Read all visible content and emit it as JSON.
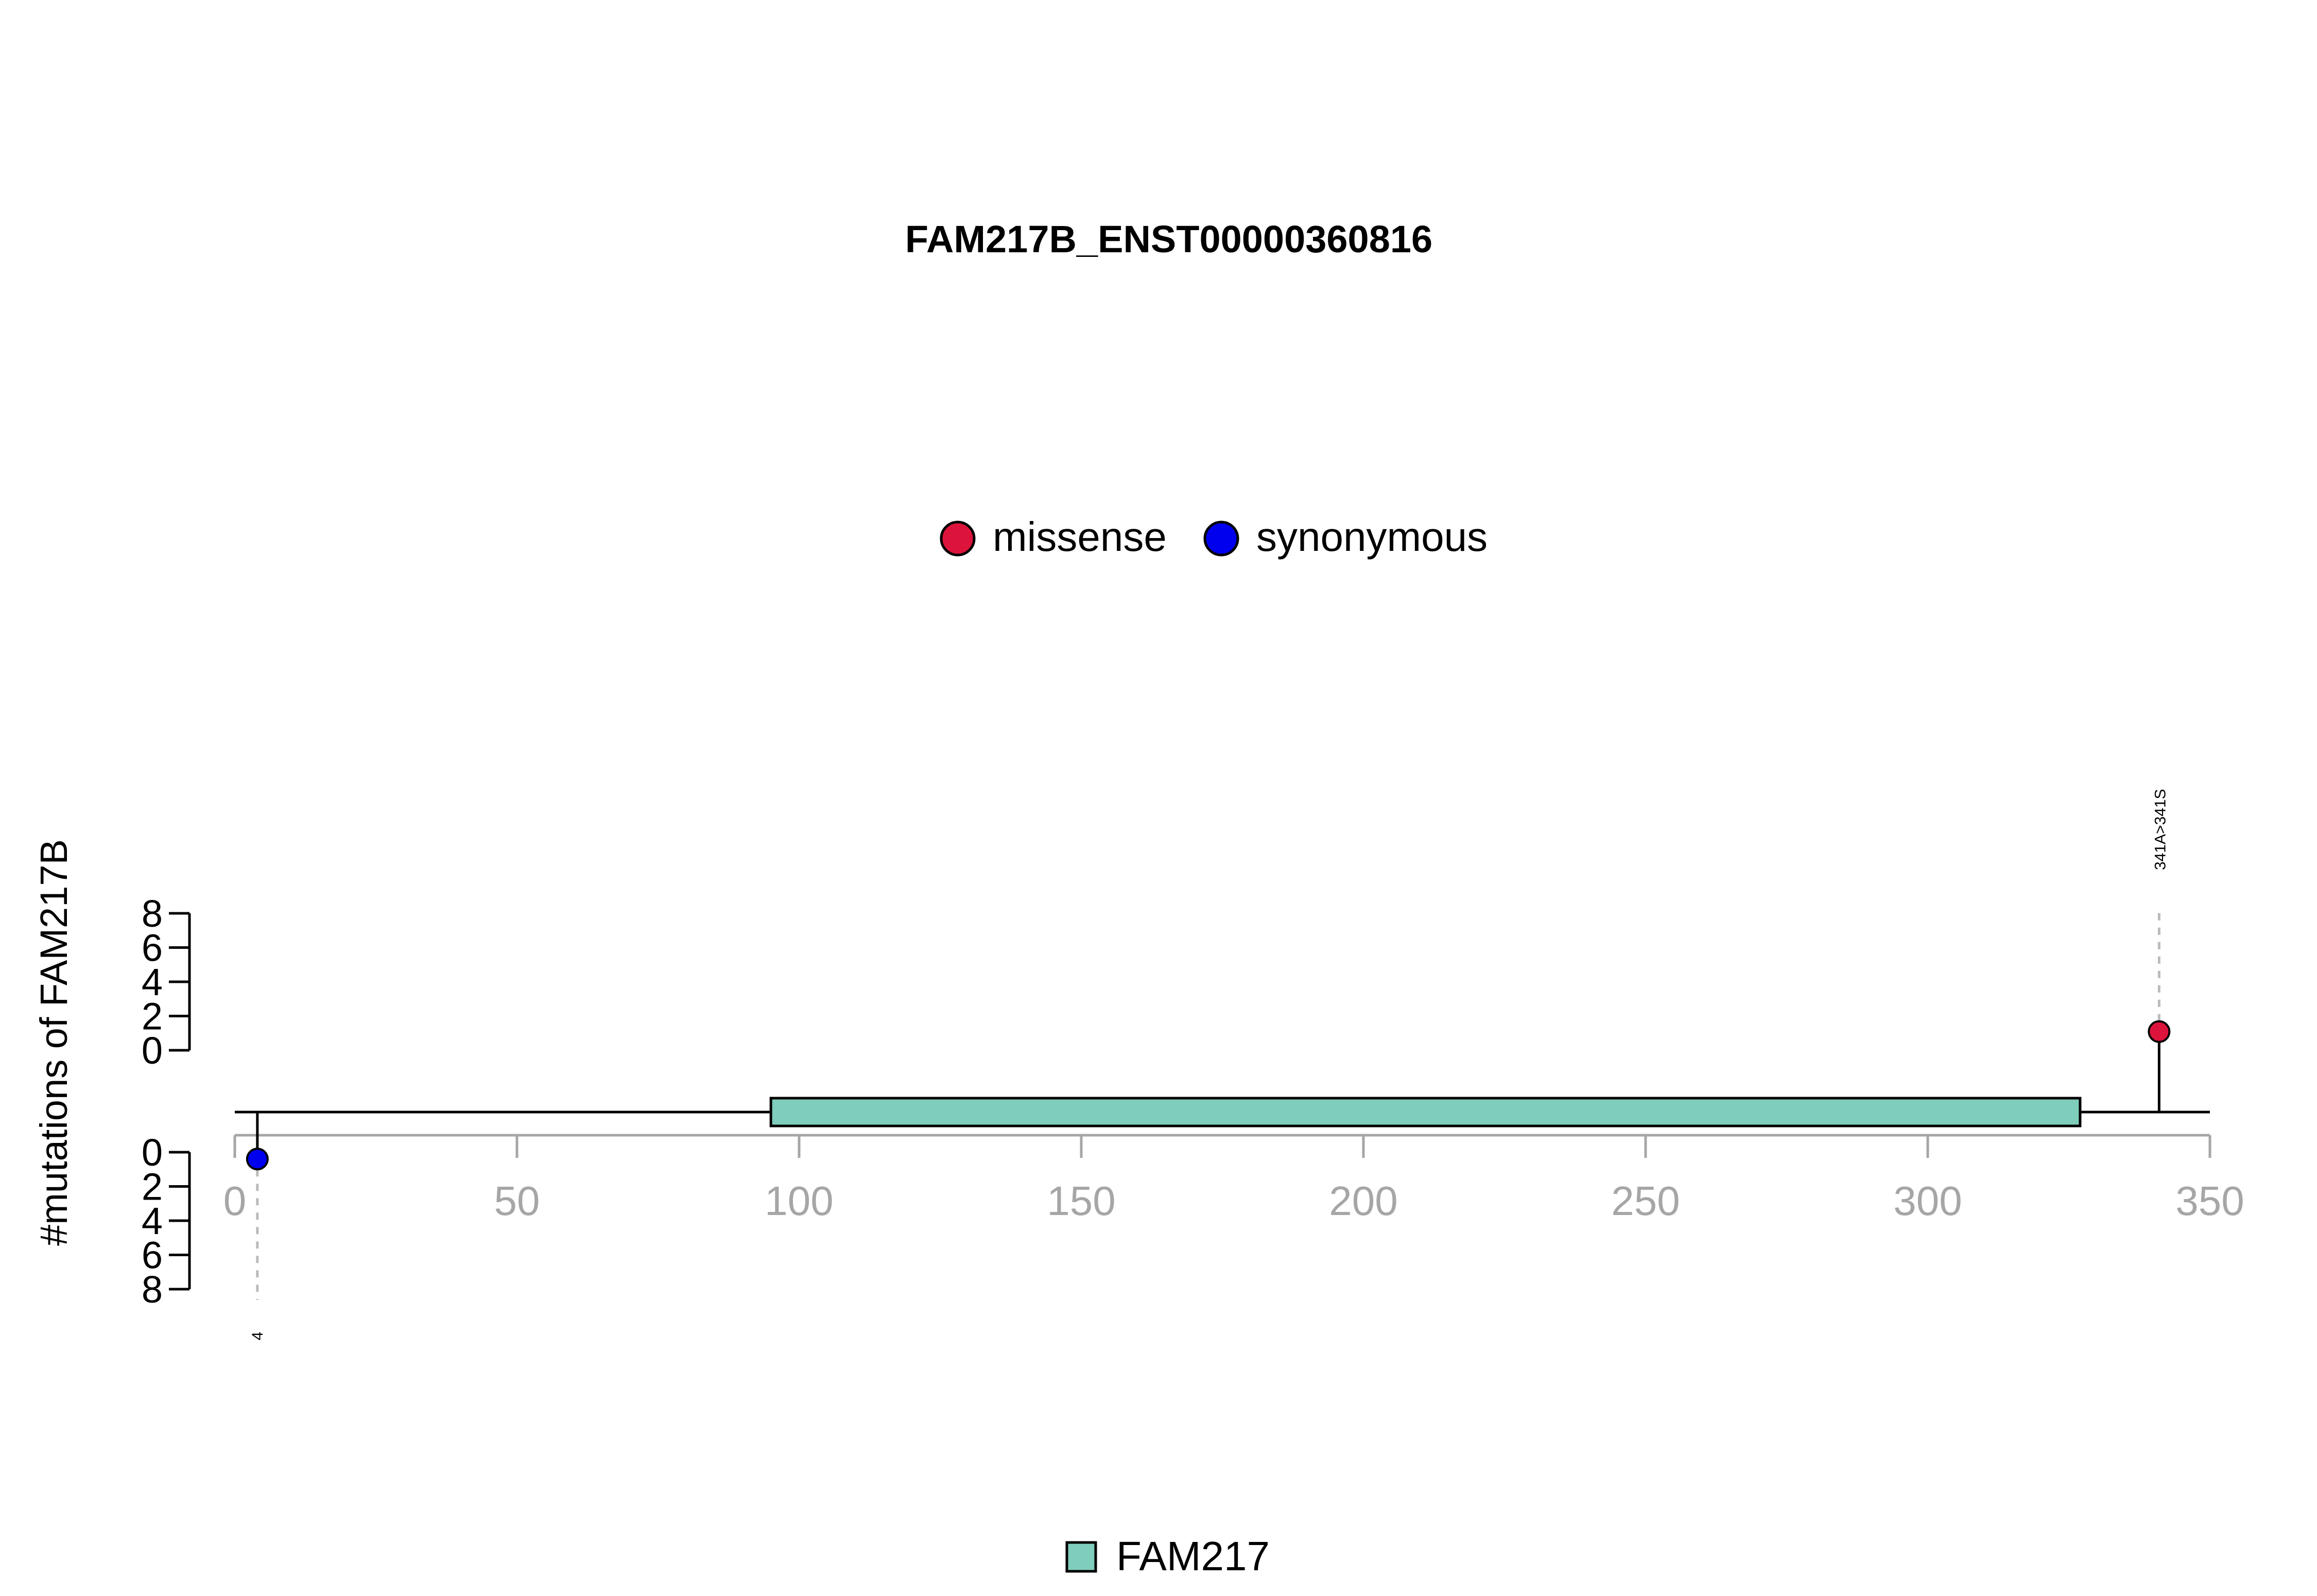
{
  "chart_data": {
    "type": "lollipop",
    "title": "FAM217B_ENST00000360816",
    "ylabel": "#mutations of FAM217B",
    "xlim": [
      0,
      350
    ],
    "x_ticks": [
      0,
      50,
      100,
      150,
      200,
      250,
      300,
      350
    ],
    "y_ticks_top": [
      0,
      2,
      4,
      6,
      8
    ],
    "y_ticks_bottom": [
      0,
      2,
      4,
      6,
      8
    ],
    "legend_top": [
      {
        "label": "missense",
        "color": "#DC143C"
      },
      {
        "label": "synonymous",
        "color": "#0000EE"
      }
    ],
    "legend_bottom": [
      {
        "label": "FAM217",
        "color": "#7FCDBB"
      }
    ],
    "domains": [
      {
        "name": "FAM217",
        "start": 95,
        "end": 327,
        "color": "#7FCDBB"
      }
    ],
    "mutations": [
      {
        "position": 341,
        "count": 1,
        "type": "missense",
        "label": "341A>341S",
        "side": "top",
        "color": "#DC143C"
      },
      {
        "position": 4,
        "count": 1,
        "type": "synonymous",
        "label": "4",
        "side": "bottom",
        "color": "#0000EE"
      }
    ],
    "colors": {
      "axis_gray": "#A6A6A6",
      "backbone": "#000000"
    }
  }
}
